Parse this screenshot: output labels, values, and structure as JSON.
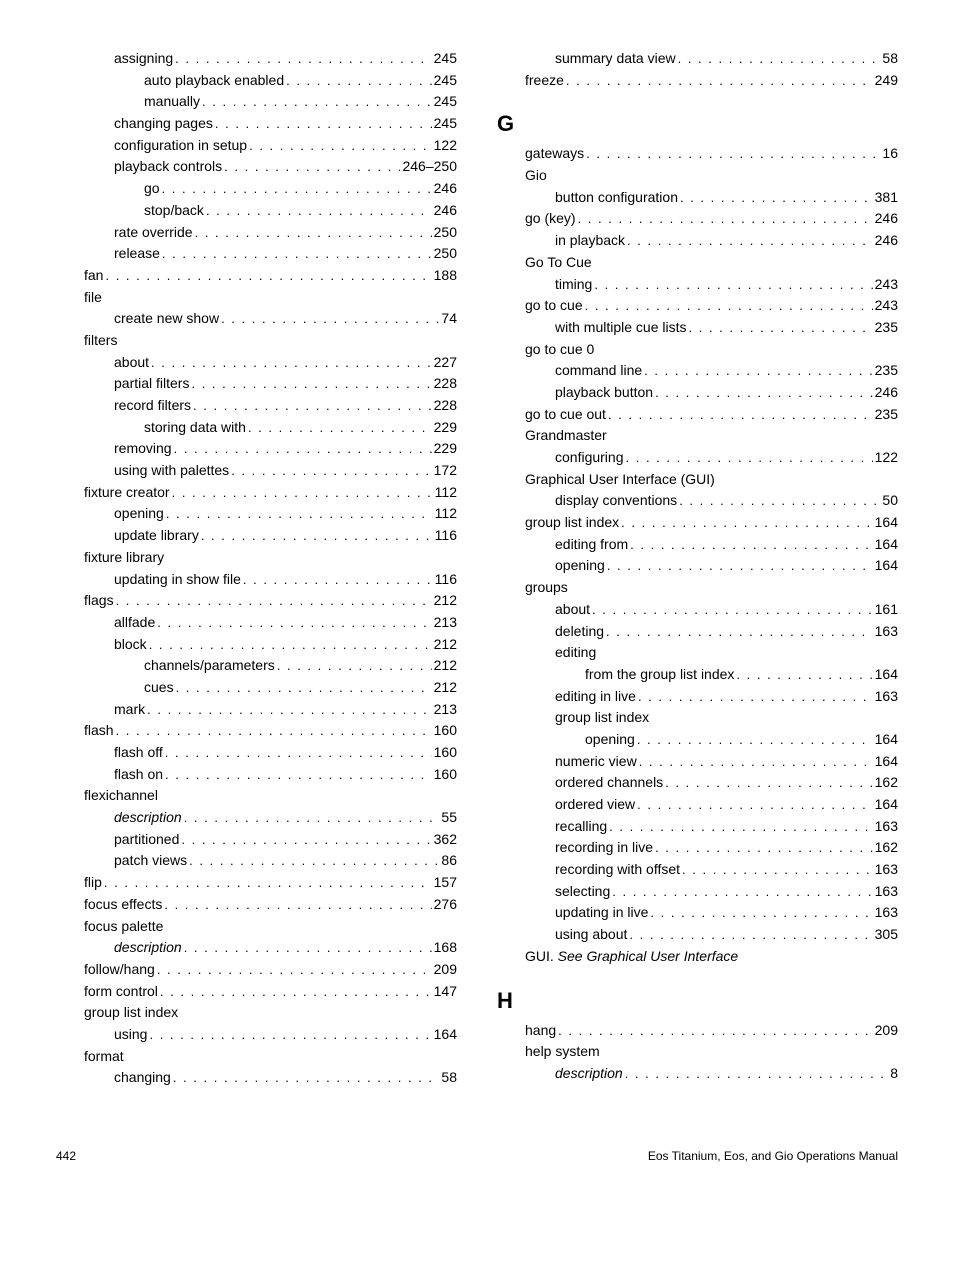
{
  "left": [
    {
      "lv": 1,
      "label": "assigning",
      "page": "245"
    },
    {
      "lv": 2,
      "label": "auto playback enabled",
      "page": "245"
    },
    {
      "lv": 2,
      "label": "manually",
      "page": "245"
    },
    {
      "lv": 1,
      "label": "changing pages",
      "page": "245"
    },
    {
      "lv": 1,
      "label": "configuration in setup",
      "page": "122"
    },
    {
      "lv": 1,
      "label": "playback controls",
      "page": "246–250"
    },
    {
      "lv": 2,
      "label": "go",
      "page": "246"
    },
    {
      "lv": 2,
      "label": "stop/back",
      "page": "246"
    },
    {
      "lv": 1,
      "label": "rate override",
      "page": "250"
    },
    {
      "lv": 1,
      "label": "release",
      "page": "250"
    },
    {
      "lv": 0,
      "label": "fan",
      "page": "188"
    },
    {
      "lv": 0,
      "label": "file",
      "noline": true
    },
    {
      "lv": 1,
      "label": "create new show",
      "page": "74"
    },
    {
      "lv": 0,
      "label": "filters",
      "noline": true
    },
    {
      "lv": 1,
      "label": "about",
      "page": "227"
    },
    {
      "lv": 1,
      "label": "partial filters",
      "page": "228"
    },
    {
      "lv": 1,
      "label": "record filters",
      "page": "228"
    },
    {
      "lv": 2,
      "label": "storing data with",
      "page": "229"
    },
    {
      "lv": 1,
      "label": "removing",
      "page": "229"
    },
    {
      "lv": 1,
      "label": "using with palettes",
      "page": "172"
    },
    {
      "lv": 0,
      "label": "fixture creator",
      "page": "112"
    },
    {
      "lv": 1,
      "label": "opening",
      "page": "112"
    },
    {
      "lv": 1,
      "label": "update library",
      "page": "116"
    },
    {
      "lv": 0,
      "label": "fixture library",
      "noline": true
    },
    {
      "lv": 1,
      "label": "updating in show file",
      "page": "116"
    },
    {
      "lv": 0,
      "label": "flags",
      "page": "212"
    },
    {
      "lv": 1,
      "label": "allfade",
      "page": "213"
    },
    {
      "lv": 1,
      "label": "block",
      "page": "212"
    },
    {
      "lv": 2,
      "label": "channels/parameters",
      "page": "212"
    },
    {
      "lv": 2,
      "label": "cues",
      "page": "212"
    },
    {
      "lv": 1,
      "label": "mark",
      "page": "213"
    },
    {
      "lv": 0,
      "label": "flash",
      "page": "160"
    },
    {
      "lv": 1,
      "label": "flash off",
      "page": "160"
    },
    {
      "lv": 1,
      "label": "flash on",
      "page": "160"
    },
    {
      "lv": 0,
      "label": "flexichannel",
      "noline": true
    },
    {
      "lv": 1,
      "label": "description",
      "page": "55",
      "italic": true
    },
    {
      "lv": 1,
      "label": "partitioned",
      "page": "362"
    },
    {
      "lv": 1,
      "label": "patch views",
      "page": "86"
    },
    {
      "lv": 0,
      "label": "flip",
      "page": "157"
    },
    {
      "lv": 0,
      "label": "focus effects",
      "page": "276"
    },
    {
      "lv": 0,
      "label": "focus palette",
      "noline": true
    },
    {
      "lv": 1,
      "label": "description",
      "page": "168",
      "italic": true
    },
    {
      "lv": 0,
      "label": "follow/hang",
      "page": "209"
    },
    {
      "lv": 0,
      "label": "form control",
      "page": "147"
    },
    {
      "lv": 0,
      "label": "group list index",
      "noline": true
    },
    {
      "lv": 1,
      "label": "using",
      "page": "164"
    },
    {
      "lv": 0,
      "label": "format",
      "noline": true
    },
    {
      "lv": 1,
      "label": "changing",
      "page": "58"
    }
  ],
  "right_top": [
    {
      "lv": 1,
      "label": "summary data view",
      "page": "58"
    },
    {
      "lv": 0,
      "label": "freeze",
      "page": "249"
    }
  ],
  "letter_g": "G",
  "right_g": [
    {
      "lv": 0,
      "label": "gateways",
      "page": "16"
    },
    {
      "lv": 0,
      "label": "Gio",
      "noline": true
    },
    {
      "lv": 1,
      "label": "button configuration",
      "page": "381"
    },
    {
      "lv": 0,
      "label": "go (key)",
      "page": "246"
    },
    {
      "lv": 1,
      "label": "in playback",
      "page": "246"
    },
    {
      "lv": 0,
      "label": "Go To Cue",
      "noline": true
    },
    {
      "lv": 1,
      "label": "timing",
      "page": "243"
    },
    {
      "lv": 0,
      "label": "go to cue",
      "page": "243"
    },
    {
      "lv": 1,
      "label": "with multiple cue lists",
      "page": "235"
    },
    {
      "lv": 0,
      "label": "go to cue 0",
      "noline": true
    },
    {
      "lv": 1,
      "label": "command line",
      "page": "235"
    },
    {
      "lv": 1,
      "label": "playback button",
      "page": "246"
    },
    {
      "lv": 0,
      "label": "go to cue out",
      "page": "235"
    },
    {
      "lv": 0,
      "label": "Grandmaster",
      "noline": true
    },
    {
      "lv": 1,
      "label": "configuring",
      "page": "122"
    },
    {
      "lv": 0,
      "label": "Graphical User Interface (GUI)",
      "noline": true
    },
    {
      "lv": 1,
      "label": "display conventions",
      "page": "50"
    },
    {
      "lv": 0,
      "label": "group list index",
      "page": "164"
    },
    {
      "lv": 1,
      "label": "editing from",
      "page": "164"
    },
    {
      "lv": 1,
      "label": "opening",
      "page": "164"
    },
    {
      "lv": 0,
      "label": "groups",
      "noline": true
    },
    {
      "lv": 1,
      "label": "about",
      "page": "161"
    },
    {
      "lv": 1,
      "label": "deleting",
      "page": "163"
    },
    {
      "lv": 1,
      "label": "editing",
      "noline": true
    },
    {
      "lv": 2,
      "label": "from the group list index",
      "page": "164"
    },
    {
      "lv": 1,
      "label": "editing in live",
      "page": "163"
    },
    {
      "lv": 1,
      "label": "group list index",
      "noline": true
    },
    {
      "lv": 2,
      "label": "opening",
      "page": "164"
    },
    {
      "lv": 1,
      "label": "numeric view",
      "page": "164"
    },
    {
      "lv": 1,
      "label": "ordered channels",
      "page": "162"
    },
    {
      "lv": 1,
      "label": "ordered view",
      "page": "164"
    },
    {
      "lv": 1,
      "label": "recalling",
      "page": "163"
    },
    {
      "lv": 1,
      "label": "recording in live",
      "page": "162"
    },
    {
      "lv": 1,
      "label": "recording with offset",
      "page": "163"
    },
    {
      "lv": 1,
      "label": "selecting",
      "page": "163"
    },
    {
      "lv": 1,
      "label": "updating in live",
      "page": "163"
    },
    {
      "lv": 1,
      "label": "using about",
      "page": "305"
    }
  ],
  "gui_see": {
    "prefix": "GUI. ",
    "see": "See Graphical User Interface"
  },
  "letter_h": "H",
  "right_h": [
    {
      "lv": 0,
      "label": "hang",
      "page": "209"
    },
    {
      "lv": 0,
      "label": "help system",
      "noline": true
    },
    {
      "lv": 1,
      "label": "description",
      "page": "8",
      "italic": true
    }
  ],
  "footer": {
    "page_num": "442",
    "manual": "Eos Titanium, Eos, and Gio Operations Manual"
  }
}
